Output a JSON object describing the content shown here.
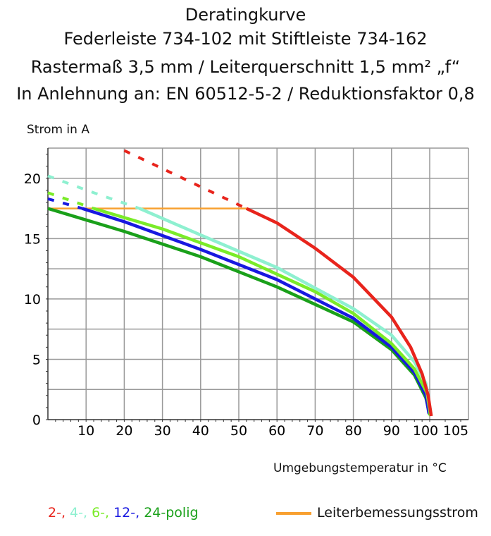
{
  "titles": [
    "Deratingkurve",
    "Federleiste 734-102 mit Stiftleiste 734-162",
    "Rastermaß 3,5 mm / Leiterquerschnitt 1,5 mm² „f“",
    "In Anlehnung an: EN 60512-5-2 / Reduktionsfaktor 0,8"
  ],
  "chart_data": {
    "type": "line",
    "ylabel": "Strom in A",
    "xlabel": "Umgebungstemperatur in °C",
    "x_ticks": [
      10,
      20,
      30,
      40,
      50,
      60,
      70,
      80,
      90,
      100,
      105
    ],
    "y_ticks": [
      0,
      5,
      10,
      15,
      20
    ],
    "xlim": [
      0,
      105
    ],
    "ylim": [
      0,
      22.5
    ],
    "grid": true,
    "legend_position": "bottom",
    "series": [
      {
        "name": "2-",
        "color": "#e8241c",
        "dashed": [
          [
            20,
            22.3
          ],
          [
            30,
            20.8
          ],
          [
            40,
            19.3
          ],
          [
            52,
            17.5
          ]
        ],
        "points": [
          [
            52,
            17.5
          ],
          [
            60,
            16.3
          ],
          [
            70,
            14.2
          ],
          [
            80,
            11.8
          ],
          [
            90,
            8.5
          ],
          [
            95,
            6
          ],
          [
            98,
            3.8
          ],
          [
            99.6,
            2
          ],
          [
            100.2,
            0.3
          ]
        ]
      },
      {
        "name": "4-",
        "color": "#8ef0d0",
        "dashed": [
          [
            0,
            20.2
          ],
          [
            12,
            18.8
          ],
          [
            24,
            17.5
          ]
        ],
        "points": [
          [
            24,
            17.5
          ],
          [
            40,
            15.3
          ],
          [
            60,
            12.6
          ],
          [
            80,
            9.2
          ],
          [
            90,
            7
          ],
          [
            96,
            4.8
          ],
          [
            99,
            3
          ],
          [
            100.2,
            0.3
          ]
        ]
      },
      {
        "name": "6-",
        "color": "#7aeb28",
        "dashed": [
          [
            0,
            18.8
          ],
          [
            12,
            17.5
          ]
        ],
        "points": [
          [
            12,
            17.5
          ],
          [
            30,
            15.8
          ],
          [
            50,
            13.5
          ],
          [
            70,
            10.6
          ],
          [
            80,
            8.8
          ],
          [
            90,
            6.3
          ],
          [
            96,
            4.2
          ],
          [
            99.3,
            2.2
          ],
          [
            100.1,
            0.3
          ]
        ]
      },
      {
        "name": "12-",
        "color": "#1818e0",
        "dashed": [
          [
            0,
            18.3
          ],
          [
            9,
            17.5
          ]
        ],
        "points": [
          [
            9,
            17.5
          ],
          [
            20,
            16.4
          ],
          [
            40,
            14.1
          ],
          [
            60,
            11.6
          ],
          [
            80,
            8.4
          ],
          [
            90,
            6
          ],
          [
            96,
            3.9
          ],
          [
            99,
            2
          ],
          [
            99.8,
            0.5
          ]
        ]
      },
      {
        "name": "24-",
        "color": "#1aa01a",
        "dashed": [],
        "points": [
          [
            0,
            17.5
          ],
          [
            20,
            15.6
          ],
          [
            40,
            13.5
          ],
          [
            60,
            11
          ],
          [
            80,
            8.1
          ],
          [
            90,
            5.8
          ],
          [
            96,
            3.7
          ],
          [
            99,
            1.8
          ],
          [
            100,
            0.4
          ]
        ]
      },
      {
        "name": "Leiterbemessungsstrom",
        "color": "#f8a030",
        "dashed": [],
        "points": [
          [
            0,
            17.5
          ],
          [
            52,
            17.5
          ]
        ]
      }
    ],
    "legend": {
      "parts": [
        "2-,",
        "4-,",
        "6-,",
        "12-,",
        "24-polig"
      ],
      "rated_label": "Leiterbemessungsstrom"
    }
  }
}
